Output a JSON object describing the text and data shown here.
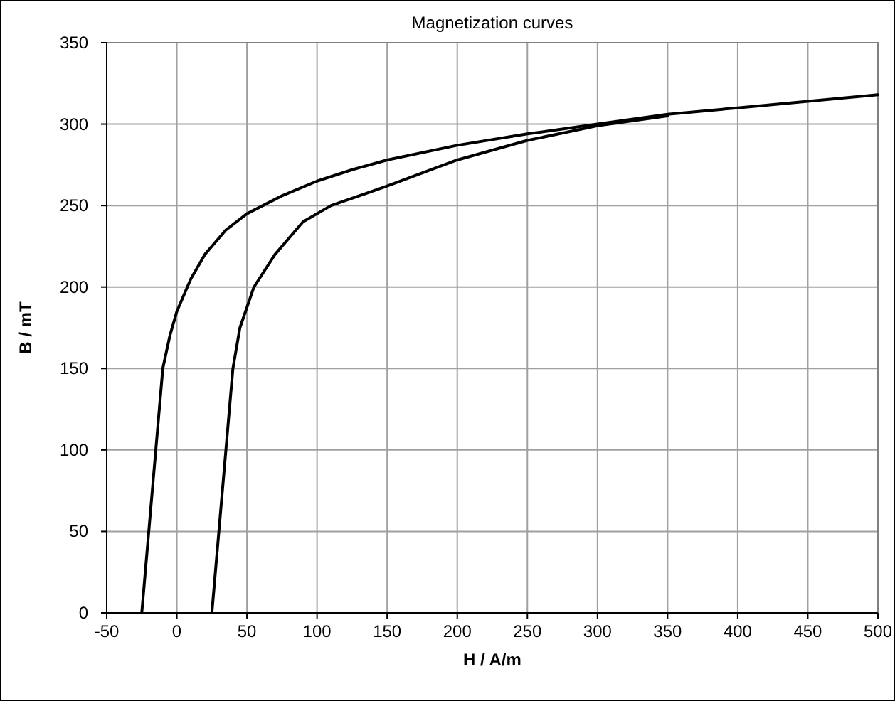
{
  "chart_data": {
    "type": "line",
    "title": "Magnetization curves",
    "xlabel": "H / A/m",
    "ylabel": "B / mT",
    "series": [
      {
        "color": "#000000",
        "x": [
          -25,
          -20,
          -15,
          -10,
          -5,
          0,
          10,
          20,
          35,
          50,
          75,
          100,
          125,
          150,
          200,
          250,
          300,
          350,
          400,
          450,
          500
        ],
        "values": [
          0,
          50,
          100,
          150,
          170,
          185,
          205,
          220,
          235,
          245,
          256,
          265,
          272,
          278,
          287,
          294,
          300,
          306,
          310,
          314,
          318
        ]
      },
      {
        "color": "#000000",
        "x": [
          25,
          30,
          35,
          40,
          45,
          55,
          70,
          90,
          110,
          150,
          200,
          250,
          300,
          350
        ],
        "values": [
          0,
          50,
          100,
          150,
          175,
          200,
          220,
          240,
          250,
          262,
          278,
          290,
          299,
          305
        ]
      }
    ],
    "xlim": [
      -50,
      500
    ],
    "xticks": [
      -50,
      0,
      50,
      100,
      150,
      200,
      250,
      300,
      350,
      400,
      450,
      500
    ],
    "ylim": [
      0,
      350
    ],
    "yticks": [
      0,
      50,
      100,
      150,
      200,
      250,
      300,
      350
    ],
    "grid": true,
    "marker": "none",
    "line_style": "solid"
  }
}
